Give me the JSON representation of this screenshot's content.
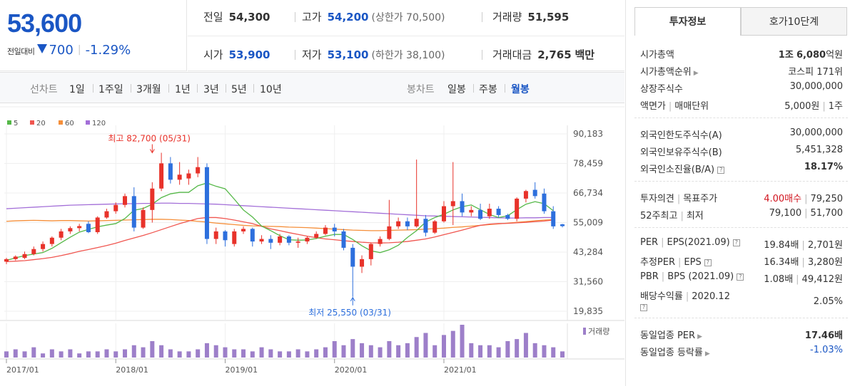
{
  "summary": {
    "current_price": "53,600",
    "change_label": "전일대비",
    "change_value": "700",
    "change_rate": "-1.29%"
  },
  "stats": {
    "prev_close_label": "전일",
    "prev_close": "54,300",
    "high_label": "고가",
    "high": "54,200",
    "upper_limit": "(상한가 70,500)",
    "volume_label": "거래량",
    "volume": "51,595",
    "open_label": "시가",
    "open": "53,900",
    "low_label": "저가",
    "low": "53,100",
    "lower_limit": "(하한가 38,100)",
    "amount_label": "거래대금",
    "amount": "2,765",
    "amount_unit": "백만"
  },
  "period_bar": {
    "line_chart_label": "선차트",
    "periods": [
      "1일",
      "1주일",
      "3개월",
      "1년",
      "3년",
      "5년",
      "10년"
    ],
    "candle_label": "봉차트",
    "candle_periods": [
      "일봉",
      "주봉",
      "월봉"
    ],
    "active_candle_period": "월봉"
  },
  "chart_data": {
    "type": "candlestick",
    "interval": "monthly",
    "legend": [
      {
        "name": "5",
        "color": "#55b848"
      },
      {
        "name": "20",
        "color": "#f05650"
      },
      {
        "name": "60",
        "color": "#f58f3a"
      },
      {
        "name": "120",
        "color": "#a36fd8"
      }
    ],
    "y_ticks": [
      "90,183",
      "78,459",
      "66,734",
      "55,009",
      "43,284",
      "31,560",
      "19,835"
    ],
    "ylim": [
      19835,
      90183
    ],
    "x_ticks": [
      {
        "label": "2017/01",
        "index": 0
      },
      {
        "label": "2018/01",
        "index": 12
      },
      {
        "label": "2019/01",
        "index": 24
      },
      {
        "label": "2020/01",
        "index": 36
      },
      {
        "label": "2021/01",
        "index": 48
      }
    ],
    "volume_label": "거래량",
    "annotations": {
      "max_text": "최고 82,700 (05/31)",
      "max_index": 16,
      "max_value": 82700,
      "min_text": "최저 25,550 (03/31)",
      "min_index": 38,
      "min_value": 25550
    },
    "colors": {
      "up": "#e8322a",
      "down": "#2d6fdd",
      "volume": "#9d7fc9"
    },
    "candles": [
      {
        "o": 39500,
        "h": 41000,
        "l": 38500,
        "c": 40500
      },
      {
        "o": 40500,
        "h": 42000,
        "l": 40000,
        "c": 41500
      },
      {
        "o": 41000,
        "h": 43500,
        "l": 40500,
        "c": 42500
      },
      {
        "o": 42500,
        "h": 45500,
        "l": 42000,
        "c": 44500
      },
      {
        "o": 44500,
        "h": 47500,
        "l": 43500,
        "c": 46500
      },
      {
        "o": 46500,
        "h": 49500,
        "l": 45500,
        "c": 49000
      },
      {
        "o": 49000,
        "h": 52500,
        "l": 48000,
        "c": 51500
      },
      {
        "o": 51500,
        "h": 53500,
        "l": 50500,
        "c": 52800
      },
      {
        "o": 52800,
        "h": 54500,
        "l": 51500,
        "c": 53600
      },
      {
        "o": 54500,
        "h": 55500,
        "l": 50800,
        "c": 51200
      },
      {
        "o": 51200,
        "h": 57500,
        "l": 50500,
        "c": 57000
      },
      {
        "o": 57000,
        "h": 60500,
        "l": 56500,
        "c": 59500
      },
      {
        "o": 59500,
        "h": 63000,
        "l": 58500,
        "c": 62000
      },
      {
        "o": 62000,
        "h": 66500,
        "l": 61000,
        "c": 65500
      },
      {
        "o": 65500,
        "h": 69000,
        "l": 51500,
        "c": 53000
      },
      {
        "o": 53000,
        "h": 61000,
        "l": 52500,
        "c": 60000
      },
      {
        "o": 60000,
        "h": 71000,
        "l": 55000,
        "c": 68500
      },
      {
        "o": 68500,
        "h": 82700,
        "l": 67500,
        "c": 78500
      },
      {
        "o": 78500,
        "h": 81000,
        "l": 70500,
        "c": 72000
      },
      {
        "o": 72000,
        "h": 79000,
        "l": 70000,
        "c": 74000
      },
      {
        "o": 72500,
        "h": 76000,
        "l": 70000,
        "c": 74500
      },
      {
        "o": 74500,
        "h": 81000,
        "l": 73000,
        "c": 77000
      },
      {
        "o": 77000,
        "h": 78500,
        "l": 46500,
        "c": 48500
      },
      {
        "o": 48500,
        "h": 53000,
        "l": 46500,
        "c": 51500
      },
      {
        "o": 51500,
        "h": 52000,
        "l": 45500,
        "c": 48000
      },
      {
        "o": 46500,
        "h": 52500,
        "l": 45500,
        "c": 51500
      },
      {
        "o": 51500,
        "h": 53500,
        "l": 50500,
        "c": 52500
      },
      {
        "o": 52500,
        "h": 53000,
        "l": 45500,
        "c": 47500
      },
      {
        "o": 47500,
        "h": 50000,
        "l": 46500,
        "c": 48500
      },
      {
        "o": 48500,
        "h": 50000,
        "l": 44500,
        "c": 47000
      },
      {
        "o": 47000,
        "h": 50500,
        "l": 46000,
        "c": 49500
      },
      {
        "o": 49500,
        "h": 50000,
        "l": 46000,
        "c": 47000
      },
      {
        "o": 47000,
        "h": 49000,
        "l": 45000,
        "c": 47500
      },
      {
        "o": 47500,
        "h": 49500,
        "l": 46500,
        "c": 49000
      },
      {
        "o": 49000,
        "h": 51500,
        "l": 48500,
        "c": 50500
      },
      {
        "o": 50500,
        "h": 54000,
        "l": 50000,
        "c": 53000
      },
      {
        "o": 53000,
        "h": 54500,
        "l": 49500,
        "c": 51500
      },
      {
        "o": 51500,
        "h": 52500,
        "l": 44000,
        "c": 45000
      },
      {
        "o": 45000,
        "h": 46500,
        "l": 25550,
        "c": 37500
      },
      {
        "o": 37500,
        "h": 42000,
        "l": 35000,
        "c": 40500
      },
      {
        "o": 40500,
        "h": 47000,
        "l": 38000,
        "c": 46500
      },
      {
        "o": 46500,
        "h": 49500,
        "l": 45500,
        "c": 48500
      },
      {
        "o": 48500,
        "h": 64000,
        "l": 48000,
        "c": 53500
      },
      {
        "o": 53500,
        "h": 57000,
        "l": 52500,
        "c": 55500
      },
      {
        "o": 55500,
        "h": 57000,
        "l": 52000,
        "c": 53500
      },
      {
        "o": 53500,
        "h": 80000,
        "l": 53000,
        "c": 56500
      },
      {
        "o": 56500,
        "h": 58000,
        "l": 49500,
        "c": 51000
      },
      {
        "o": 51000,
        "h": 56000,
        "l": 50500,
        "c": 55500
      },
      {
        "o": 55500,
        "h": 63500,
        "l": 55000,
        "c": 61500
      },
      {
        "o": 61500,
        "h": 79000,
        "l": 54000,
        "c": 63500
      },
      {
        "o": 63500,
        "h": 66500,
        "l": 57500,
        "c": 59000
      },
      {
        "o": 59000,
        "h": 61500,
        "l": 57500,
        "c": 60000
      },
      {
        "o": 60000,
        "h": 62500,
        "l": 56000,
        "c": 56500
      },
      {
        "o": 57500,
        "h": 62500,
        "l": 56500,
        "c": 60500
      },
      {
        "o": 60500,
        "h": 61500,
        "l": 57000,
        "c": 58000
      },
      {
        "o": 58000,
        "h": 58500,
        "l": 56000,
        "c": 56500
      },
      {
        "o": 56500,
        "h": 65000,
        "l": 55500,
        "c": 64500
      },
      {
        "o": 64500,
        "h": 68000,
        "l": 63000,
        "c": 67500
      },
      {
        "o": 68000,
        "h": 71000,
        "l": 64500,
        "c": 65500
      },
      {
        "o": 66500,
        "h": 68500,
        "l": 58500,
        "c": 59500
      },
      {
        "o": 59500,
        "h": 61500,
        "l": 52500,
        "c": 53500
      },
      {
        "o": 54300,
        "h": 54500,
        "l": 53100,
        "c": 53600
      }
    ],
    "ma5": [
      40000,
      41000,
      41900,
      42500,
      43100,
      44800,
      47000,
      49200,
      51200,
      52300,
      53300,
      54000,
      54600,
      56600,
      59900,
      60600,
      62300,
      64900,
      66400,
      67000,
      67000,
      69600,
      70700,
      69400,
      68400,
      64300,
      60000,
      57200,
      53600,
      51800,
      49800,
      48200,
      48000,
      48100,
      48700,
      49600,
      50300,
      50300,
      48300,
      45800,
      43800,
      43100,
      44200,
      46000,
      49100,
      51800,
      55200,
      57000,
      58300,
      60000,
      61300,
      62000,
      60100,
      58200,
      57000,
      57700,
      60100,
      62300,
      63300,
      62500,
      59700
    ],
    "ma20": [
      39500,
      39700,
      39900,
      40300,
      40700,
      41200,
      41900,
      42700,
      43600,
      44300,
      45100,
      45900,
      46800,
      47900,
      48900,
      49900,
      51000,
      52200,
      53400,
      54600,
      55600,
      56600,
      57000,
      57000,
      56600,
      56000,
      55300,
      54600,
      53500,
      52500,
      51800,
      51000,
      50300,
      49600,
      49000,
      48500,
      48200,
      47800,
      47500,
      47200,
      47000,
      46900,
      47000,
      47200,
      47500,
      48000,
      48500,
      49300,
      50200,
      51100,
      52000,
      53000,
      53900,
      54400,
      54600,
      54700,
      54900,
      55100,
      55400,
      55600,
      56000
    ],
    "ma60": [
      55500,
      55700,
      55800,
      55900,
      55800,
      55700,
      55800,
      55800,
      55700,
      55600,
      55700,
      55800,
      55900,
      56000,
      56100,
      56200,
      56300,
      56300,
      56200,
      56000,
      55800,
      55500,
      55200,
      54800,
      54500,
      54200,
      53900,
      53700,
      53600,
      53500,
      53400,
      53200,
      53100,
      53000,
      52800,
      52600,
      52400,
      52200,
      52000,
      51900,
      51800,
      51800,
      51900,
      52000,
      52100,
      52200,
      52400,
      52600,
      52800,
      53100,
      53300,
      53600,
      53900,
      54200,
      54500,
      54800,
      55100,
      55400,
      55700,
      56000,
      56200
    ],
    "ma120": [
      60500,
      60700,
      60900,
      61100,
      61300,
      61500,
      61700,
      61900,
      62000,
      62100,
      62200,
      62300,
      62400,
      62500,
      62500,
      62600,
      62600,
      62700,
      62700,
      62600,
      62600,
      62500,
      62400,
      62300,
      62100,
      61900,
      61700,
      61500,
      61300,
      61100,
      60900,
      60700,
      60500,
      60300,
      60100,
      59900,
      59700,
      59500,
      59300,
      59100,
      58900,
      58700,
      58500,
      58300,
      58100,
      57900,
      57700,
      57600,
      57500,
      57400,
      57300,
      57200,
      57100,
      57000,
      56900,
      56800,
      56800,
      56900,
      56900,
      57000,
      57000
    ],
    "volumes": [
      3,
      4,
      3,
      5,
      2,
      4,
      3,
      4,
      2,
      3,
      3,
      4,
      3,
      4,
      6,
      5,
      8,
      6,
      4,
      3,
      3,
      4,
      7,
      6,
      5,
      4,
      4,
      3,
      5,
      4,
      3,
      3,
      4,
      3,
      4,
      5,
      8,
      6,
      9,
      7,
      6,
      5,
      8,
      6,
      7,
      10,
      12,
      6,
      11,
      13,
      16,
      7,
      6,
      6,
      5,
      8,
      9,
      12,
      7,
      6,
      5,
      3
    ]
  },
  "right_panel": {
    "tabs": [
      "투자정보",
      "호가10단계"
    ],
    "market_cap_label": "시가총액",
    "market_cap_jo": "1조",
    "market_cap_rest": "6,080",
    "market_cap_unit": "억원",
    "market_rank_label": "시가총액순위",
    "market_rank": "코스피 171위",
    "shares_label": "상장주식수",
    "shares": "30,000,000",
    "face_label": "액면가",
    "unit_label": "매매단위",
    "face_value": "5,000원",
    "trade_unit": "1주",
    "foreign_limit_label": "외국인한도주식수(A)",
    "foreign_limit": "30,000,000",
    "foreign_hold_label": "외국인보유주식수(B)",
    "foreign_hold": "5,451,328",
    "foreign_rate_label": "외국인소진율(B/A)",
    "foreign_rate": "18.17%",
    "opinion_label": "투자의견",
    "target_label": "목표주가",
    "opinion": "4.00매수",
    "target": "79,250",
    "w52_label": "52주최고",
    "w52_low_label": "최저",
    "w52_high": "79,100",
    "w52_low": "51,700",
    "per_label": "PER",
    "eps_label": "EPS(2021.09)",
    "per": "19.84배",
    "eps": "2,701원",
    "est_per_label": "추정PER",
    "est_eps_label": "EPS",
    "est_per": "16.34배",
    "est_eps": "3,280원",
    "pbr_label": "PBR",
    "bps_label": "BPS (2021.09)",
    "pbr": "1.08배",
    "bps": "49,412원",
    "div_label": "배당수익률",
    "div_date": "2020.12",
    "div": "2.05%",
    "sector_per_label": "동일업종 PER",
    "sector_per": "17.46배",
    "sector_rate_label": "동일업종 등락률",
    "sector_rate": "-1.03%"
  }
}
